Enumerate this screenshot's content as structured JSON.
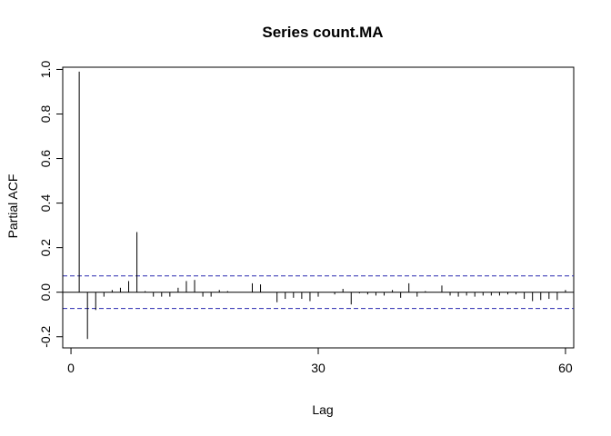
{
  "chart_data": {
    "type": "bar",
    "title": "Series  count.MA",
    "xlabel": "Lag",
    "ylabel": "Partial ACF",
    "xlim": [
      -1,
      61
    ],
    "ylim": [
      -0.25,
      1.01
    ],
    "x_ticks": [
      0,
      30,
      60
    ],
    "y_ticks": [
      -0.2,
      0.0,
      0.2,
      0.4,
      0.6,
      0.8,
      1.0
    ],
    "confidence_limit": 0.073,
    "grid": false,
    "series": [
      {
        "lags": [
          1,
          2,
          3,
          4,
          5,
          6,
          7,
          8,
          9,
          10,
          11,
          12,
          13,
          14,
          15,
          16,
          17,
          18,
          19,
          20,
          21,
          22,
          23,
          24,
          25,
          26,
          27,
          28,
          29,
          30,
          31,
          32,
          33,
          34,
          35,
          36,
          37,
          38,
          39,
          40,
          41,
          42,
          43,
          44,
          45,
          46,
          47,
          48,
          49,
          50,
          51,
          52,
          53,
          54,
          55,
          56,
          57,
          58,
          59,
          60
        ],
        "values": [
          0.99,
          -0.21,
          -0.08,
          -0.02,
          0.01,
          0.02,
          0.05,
          0.27,
          0.005,
          -0.02,
          -0.02,
          -0.02,
          0.02,
          0.05,
          0.055,
          -0.02,
          -0.02,
          0.01,
          0.005,
          0.0,
          0.0,
          0.04,
          0.035,
          0.0,
          -0.045,
          -0.03,
          -0.025,
          -0.03,
          -0.04,
          -0.02,
          0.0,
          -0.01,
          0.015,
          -0.055,
          -0.005,
          -0.01,
          -0.015,
          -0.015,
          0.01,
          -0.025,
          0.04,
          -0.02,
          0.005,
          0.0,
          0.03,
          -0.015,
          -0.02,
          -0.015,
          -0.02,
          -0.015,
          -0.015,
          -0.015,
          -0.01,
          -0.01,
          -0.03,
          -0.04,
          -0.035,
          -0.03,
          -0.035,
          0.01
        ]
      }
    ]
  }
}
